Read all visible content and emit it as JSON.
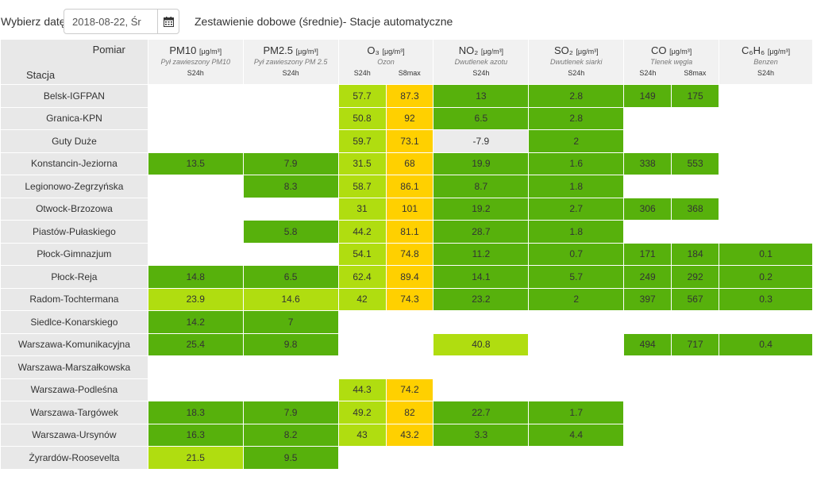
{
  "header": {
    "date_label": "Wybierz datę:",
    "date_value": "2018-08-22, Śr",
    "title": "Zestawienie dobowe (średnie)- Stacje automatyczne"
  },
  "table": {
    "corner_top": "Pomiar",
    "corner_bottom": "Stacja",
    "columns": [
      {
        "name": "PM10",
        "unit": "[μg/m³]",
        "desc": "Pył zawieszony PM10",
        "subs": [
          "S24h"
        ]
      },
      {
        "name": "PM2.5",
        "unit": "[μg/m³]",
        "desc": "Pył zawieszony PM 2.5",
        "subs": [
          "S24h"
        ]
      },
      {
        "name": "O₃",
        "unit": "[μg/m³]",
        "desc": "Ozon",
        "subs": [
          "S24h",
          "S8max"
        ]
      },
      {
        "name": "NO₂",
        "unit": "[μg/m³]",
        "desc": "Dwutlenek azotu",
        "subs": [
          "S24h"
        ]
      },
      {
        "name": "SO₂",
        "unit": "[μg/m³]",
        "desc": "Dwutlenek siarki",
        "subs": [
          "S24h"
        ]
      },
      {
        "name": "CO",
        "unit": "[μg/m³]",
        "desc": "Tlenek węgla",
        "subs": [
          "S24h",
          "S8max"
        ]
      },
      {
        "name": "C₆H₆",
        "unit": "[μg/m³]",
        "desc": "Benzen",
        "subs": [
          "S24h"
        ]
      }
    ],
    "rows": [
      {
        "station": "Belsk-IGFPAN",
        "cells": [
          [
            "",
            ""
          ],
          [
            "",
            ""
          ],
          [
            "57.7",
            "l"
          ],
          [
            "87.3",
            "y"
          ],
          [
            "13",
            "g"
          ],
          [
            "2.8",
            "g"
          ],
          [
            "149",
            "g"
          ],
          [
            "175",
            "g"
          ],
          [
            "",
            ""
          ]
        ]
      },
      {
        "station": "Granica-KPN",
        "cells": [
          [
            "",
            ""
          ],
          [
            "",
            ""
          ],
          [
            "50.8",
            "l"
          ],
          [
            "92",
            "y"
          ],
          [
            "6.5",
            "g"
          ],
          [
            "2.8",
            "g"
          ],
          [
            "",
            ""
          ],
          [
            "",
            ""
          ],
          [
            "",
            ""
          ]
        ]
      },
      {
        "station": "Guty Duże",
        "cells": [
          [
            "",
            ""
          ],
          [
            "",
            ""
          ],
          [
            "59.7",
            "l"
          ],
          [
            "73.1",
            "y"
          ],
          [
            "-7.9",
            "x"
          ],
          [
            "2",
            "g"
          ],
          [
            "",
            ""
          ],
          [
            "",
            ""
          ],
          [
            "",
            ""
          ]
        ]
      },
      {
        "station": "Konstancin-Jeziorna",
        "cells": [
          [
            "13.5",
            "g"
          ],
          [
            "7.9",
            "g"
          ],
          [
            "31.5",
            "l"
          ],
          [
            "68",
            "y"
          ],
          [
            "19.9",
            "g"
          ],
          [
            "1.6",
            "g"
          ],
          [
            "338",
            "g"
          ],
          [
            "553",
            "g"
          ],
          [
            "",
            ""
          ]
        ]
      },
      {
        "station": "Legionowo-Zegrzyńska",
        "cells": [
          [
            "",
            ""
          ],
          [
            "8.3",
            "g"
          ],
          [
            "58.7",
            "l"
          ],
          [
            "86.1",
            "y"
          ],
          [
            "8.7",
            "g"
          ],
          [
            "1.8",
            "g"
          ],
          [
            "",
            ""
          ],
          [
            "",
            ""
          ],
          [
            "",
            ""
          ]
        ]
      },
      {
        "station": "Otwock-Brzozowa",
        "cells": [
          [
            "",
            ""
          ],
          [
            "",
            ""
          ],
          [
            "31",
            "l"
          ],
          [
            "101",
            "y"
          ],
          [
            "19.2",
            "g"
          ],
          [
            "2.7",
            "g"
          ],
          [
            "306",
            "g"
          ],
          [
            "368",
            "g"
          ],
          [
            "",
            ""
          ]
        ]
      },
      {
        "station": "Piastów-Pułaskiego",
        "cells": [
          [
            "",
            ""
          ],
          [
            "5.8",
            "g"
          ],
          [
            "44.2",
            "l"
          ],
          [
            "81.1",
            "y"
          ],
          [
            "28.7",
            "g"
          ],
          [
            "1.8",
            "g"
          ],
          [
            "",
            ""
          ],
          [
            "",
            ""
          ],
          [
            "",
            ""
          ]
        ]
      },
      {
        "station": "Płock-Gimnazjum",
        "cells": [
          [
            "",
            ""
          ],
          [
            "",
            ""
          ],
          [
            "54.1",
            "l"
          ],
          [
            "74.8",
            "y"
          ],
          [
            "11.2",
            "g"
          ],
          [
            "0.7",
            "g"
          ],
          [
            "171",
            "g"
          ],
          [
            "184",
            "g"
          ],
          [
            "0.1",
            "g"
          ]
        ]
      },
      {
        "station": "Płock-Reja",
        "cells": [
          [
            "14.8",
            "g"
          ],
          [
            "6.5",
            "g"
          ],
          [
            "62.4",
            "l"
          ],
          [
            "89.4",
            "y"
          ],
          [
            "14.1",
            "g"
          ],
          [
            "5.7",
            "g"
          ],
          [
            "249",
            "g"
          ],
          [
            "292",
            "g"
          ],
          [
            "0.2",
            "g"
          ]
        ]
      },
      {
        "station": "Radom-Tochtermana",
        "cells": [
          [
            "23.9",
            "l"
          ],
          [
            "14.6",
            "l"
          ],
          [
            "42",
            "l"
          ],
          [
            "74.3",
            "y"
          ],
          [
            "23.2",
            "g"
          ],
          [
            "2",
            "g"
          ],
          [
            "397",
            "g"
          ],
          [
            "567",
            "g"
          ],
          [
            "0.3",
            "g"
          ]
        ]
      },
      {
        "station": "Siedlce-Konarskiego",
        "cells": [
          [
            "14.2",
            "g"
          ],
          [
            "7",
            "g"
          ],
          [
            "",
            ""
          ],
          [
            "",
            ""
          ],
          [
            "",
            ""
          ],
          [
            "",
            ""
          ],
          [
            "",
            ""
          ],
          [
            "",
            ""
          ],
          [
            "",
            ""
          ]
        ]
      },
      {
        "station": "Warszawa-Komunikacyjna",
        "cells": [
          [
            "25.4",
            "g"
          ],
          [
            "9.8",
            "g"
          ],
          [
            "",
            ""
          ],
          [
            "",
            ""
          ],
          [
            "40.8",
            "l"
          ],
          [
            "",
            ""
          ],
          [
            "494",
            "g"
          ],
          [
            "717",
            "g"
          ],
          [
            "0.4",
            "g"
          ]
        ]
      },
      {
        "station": "Warszawa-Marszałkowska",
        "cells": [
          [
            "",
            ""
          ],
          [
            "",
            ""
          ],
          [
            "",
            ""
          ],
          [
            "",
            ""
          ],
          [
            "",
            ""
          ],
          [
            "",
            ""
          ],
          [
            "",
            ""
          ],
          [
            "",
            ""
          ],
          [
            "",
            ""
          ]
        ]
      },
      {
        "station": "Warszawa-Podleśna",
        "cells": [
          [
            "",
            ""
          ],
          [
            "",
            ""
          ],
          [
            "44.3",
            "l"
          ],
          [
            "74.2",
            "y"
          ],
          [
            "",
            ""
          ],
          [
            "",
            ""
          ],
          [
            "",
            ""
          ],
          [
            "",
            ""
          ],
          [
            "",
            ""
          ]
        ]
      },
      {
        "station": "Warszawa-Targówek",
        "cells": [
          [
            "18.3",
            "g"
          ],
          [
            "7.9",
            "g"
          ],
          [
            "49.2",
            "l"
          ],
          [
            "82",
            "y"
          ],
          [
            "22.7",
            "g"
          ],
          [
            "1.7",
            "g"
          ],
          [
            "",
            ""
          ],
          [
            "",
            ""
          ],
          [
            "",
            ""
          ]
        ]
      },
      {
        "station": "Warszawa-Ursynów",
        "cells": [
          [
            "16.3",
            "g"
          ],
          [
            "8.2",
            "g"
          ],
          [
            "43",
            "l"
          ],
          [
            "43.2",
            "y"
          ],
          [
            "3.3",
            "g"
          ],
          [
            "4.4",
            "g"
          ],
          [
            "",
            ""
          ],
          [
            "",
            ""
          ],
          [
            "",
            ""
          ]
        ]
      },
      {
        "station": "Żyrardów-Roosevelta",
        "cells": [
          [
            "21.5",
            "l"
          ],
          [
            "9.5",
            "g"
          ],
          [
            "",
            ""
          ],
          [
            "",
            ""
          ],
          [
            "",
            ""
          ],
          [
            "",
            ""
          ],
          [
            "",
            ""
          ],
          [
            "",
            ""
          ],
          [
            "",
            ""
          ]
        ]
      }
    ]
  },
  "colors": {
    "good": "#57b10c",
    "moderate_light": "#b0dd10",
    "ozone_yellow": "#ffd000",
    "invalid": "#ebebeb"
  }
}
